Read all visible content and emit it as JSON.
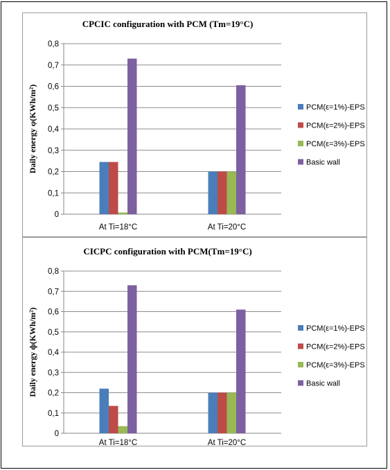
{
  "chart_data": [
    {
      "type": "bar",
      "title": "CPCIC configuration with PCM (Tm=19°C)",
      "ylabel": "Daily energy φ(KWh/m²)",
      "xlabel": "",
      "categories": [
        "At Ti=18°C",
        "At Ti=20°C"
      ],
      "ylim": [
        0,
        0.8
      ],
      "yticks": [
        "0",
        "0,1",
        "0,2",
        "0,3",
        "0,4",
        "0,5",
        "0,6",
        "0,7",
        "0,8"
      ],
      "grid": true,
      "legend_position": "right",
      "series": [
        {
          "name": "PCM(ε=1%)-EPS",
          "color": "#4a7ebb",
          "values": [
            0.245,
            0.2
          ]
        },
        {
          "name": "PCM(ε=2%)-EPS",
          "color": "#be4b48",
          "values": [
            0.245,
            0.2
          ]
        },
        {
          "name": "PCM(ε=3%)-EPS",
          "color": "#98b954",
          "values": [
            0.008,
            0.2
          ]
        },
        {
          "name": "Basic wall",
          "color": "#7d60a0",
          "values": [
            0.73,
            0.605
          ]
        }
      ]
    },
    {
      "type": "bar",
      "title": "CICPC configuration with PCM(Tm=19°C)",
      "ylabel": "Daily energy ф(KWh/m²)",
      "xlabel": "",
      "categories": [
        "At Ti=18°C",
        "At Ti=20°C"
      ],
      "ylim": [
        0,
        0.8
      ],
      "yticks": [
        "0",
        "0,1",
        "0,2",
        "0,3",
        "0,4",
        "0,5",
        "0,6",
        "0,7",
        "0,8"
      ],
      "grid": true,
      "legend_position": "right",
      "series": [
        {
          "name": "PCM(ε=1%)-EPS",
          "color": "#4a7ebb",
          "values": [
            0.22,
            0.2
          ]
        },
        {
          "name": "PCM(ε=2%)-EPS",
          "color": "#be4b48",
          "values": [
            0.135,
            0.2
          ]
        },
        {
          "name": "PCM(ε=3%)-EPS",
          "color": "#98b954",
          "values": [
            0.035,
            0.2
          ]
        },
        {
          "name": "Basic wall",
          "color": "#7d60a0",
          "values": [
            0.73,
            0.61
          ]
        }
      ]
    }
  ]
}
